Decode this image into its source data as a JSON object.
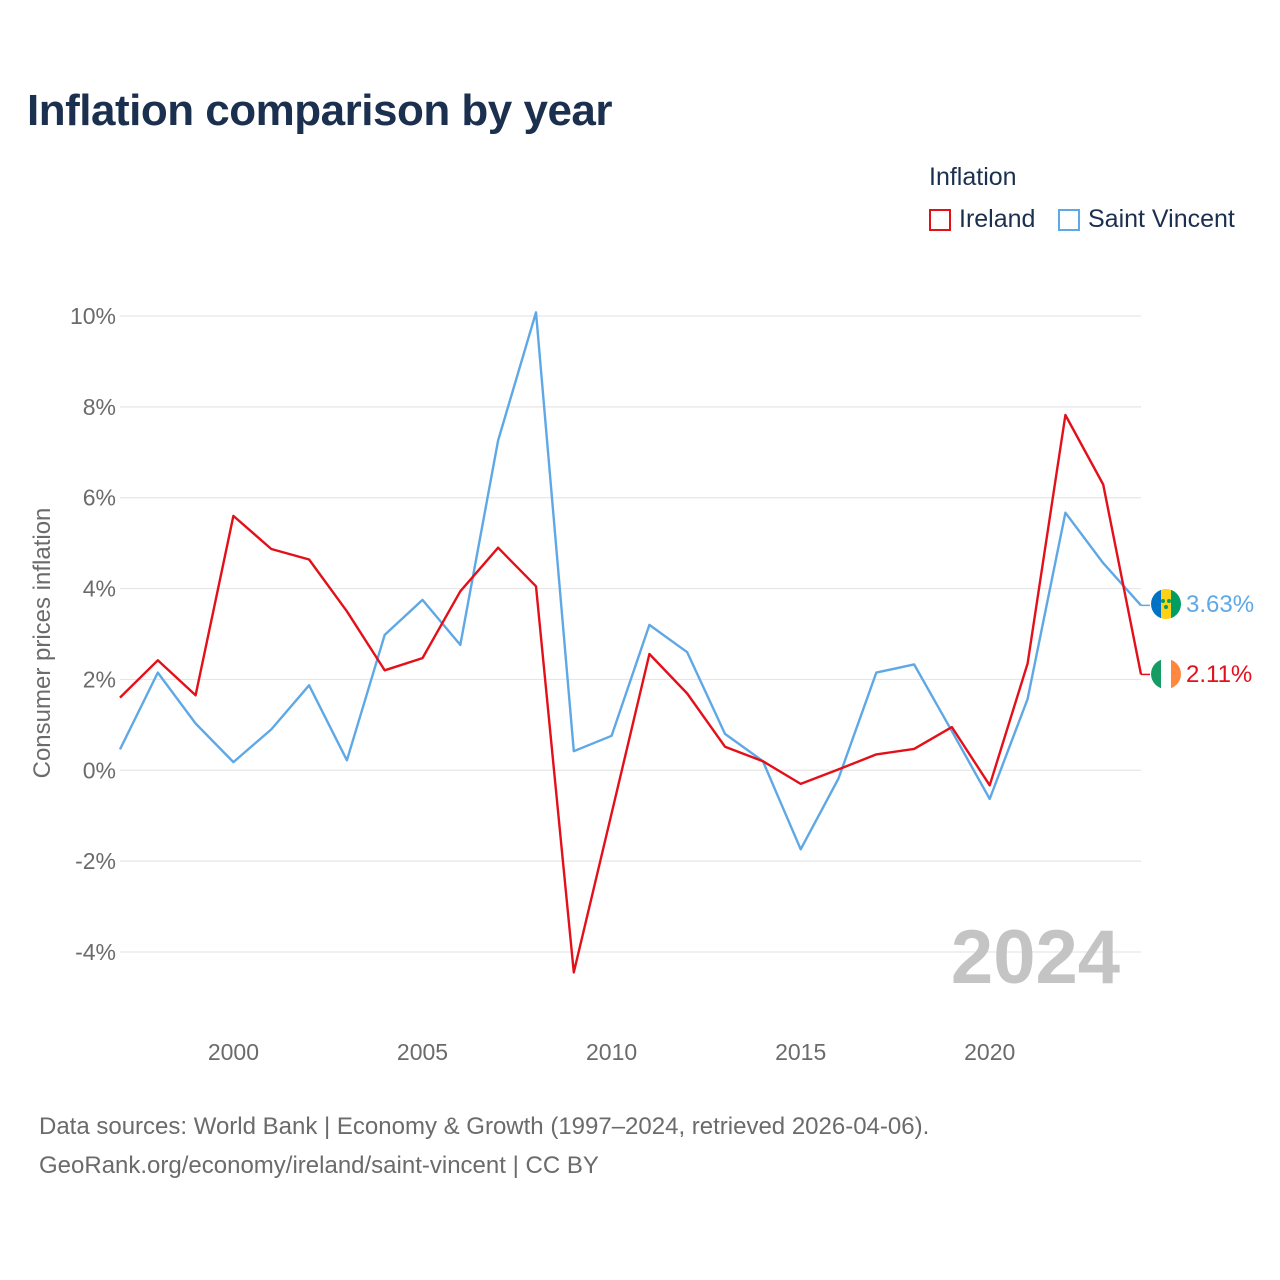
{
  "header": {
    "title": "Inflation comparison by year"
  },
  "legend": {
    "title": "Inflation",
    "items": [
      {
        "label": "Ireland",
        "color": "#e3101a"
      },
      {
        "label": "Saint Vincent",
        "color": "#5fa8e6"
      }
    ]
  },
  "chart_data": {
    "type": "line",
    "title": "Inflation comparison by year",
    "xlabel": "",
    "ylabel": "Consumer prices inflation",
    "x": [
      1997,
      1998,
      1999,
      2000,
      2001,
      2002,
      2003,
      2004,
      2005,
      2006,
      2007,
      2008,
      2009,
      2010,
      2011,
      2012,
      2013,
      2014,
      2015,
      2016,
      2017,
      2018,
      2019,
      2020,
      2021,
      2022,
      2023,
      2024
    ],
    "xlim": [
      1997,
      2024
    ],
    "ylim": [
      -5,
      10.5
    ],
    "x_ticks": [
      2000,
      2005,
      2010,
      2015,
      2020
    ],
    "x_tick_labels": [
      "2000",
      "2005",
      "2010",
      "2015",
      "2020"
    ],
    "y_ticks": [
      -4,
      -2,
      0,
      2,
      4,
      6,
      8,
      10
    ],
    "y_tick_labels": [
      "-4%",
      "-2%",
      "0%",
      "2%",
      "4%",
      "6%",
      "8%",
      "10%"
    ],
    "grid": true,
    "legend_position": "top-right",
    "series": [
      {
        "name": "Ireland",
        "color": "#e3101a",
        "values": [
          1.6,
          2.42,
          1.65,
          5.6,
          4.87,
          4.64,
          3.5,
          2.2,
          2.47,
          3.94,
          4.9,
          4.05,
          -4.45,
          -0.95,
          2.56,
          1.69,
          0.52,
          0.2,
          -0.3,
          0.02,
          0.35,
          0.47,
          0.95,
          -0.33,
          2.35,
          7.82,
          6.29,
          2.11
        ],
        "end_label": "2.11%"
      },
      {
        "name": "Saint Vincent",
        "color": "#5fa8e6",
        "values": [
          0.46,
          2.15,
          1.03,
          0.18,
          0.9,
          1.87,
          0.22,
          2.98,
          3.75,
          2.76,
          7.26,
          10.08,
          0.42,
          0.76,
          3.2,
          2.6,
          0.8,
          0.2,
          -1.74,
          -0.18,
          2.15,
          2.33,
          0.86,
          -0.63,
          1.57,
          5.67,
          4.56,
          3.63
        ],
        "end_label": "3.63%"
      }
    ],
    "annotation": "2024"
  },
  "source": {
    "line1": "Data sources: World Bank | Economy & Growth (1997–2024, retrieved 2026-04-06).",
    "line2": "GeoRank.org/economy/ireland/saint-vincent | CC BY"
  },
  "icons": {
    "ireland_flag": "ireland-flag-icon",
    "saint_vincent_flag": "saint-vincent-flag-icon"
  }
}
